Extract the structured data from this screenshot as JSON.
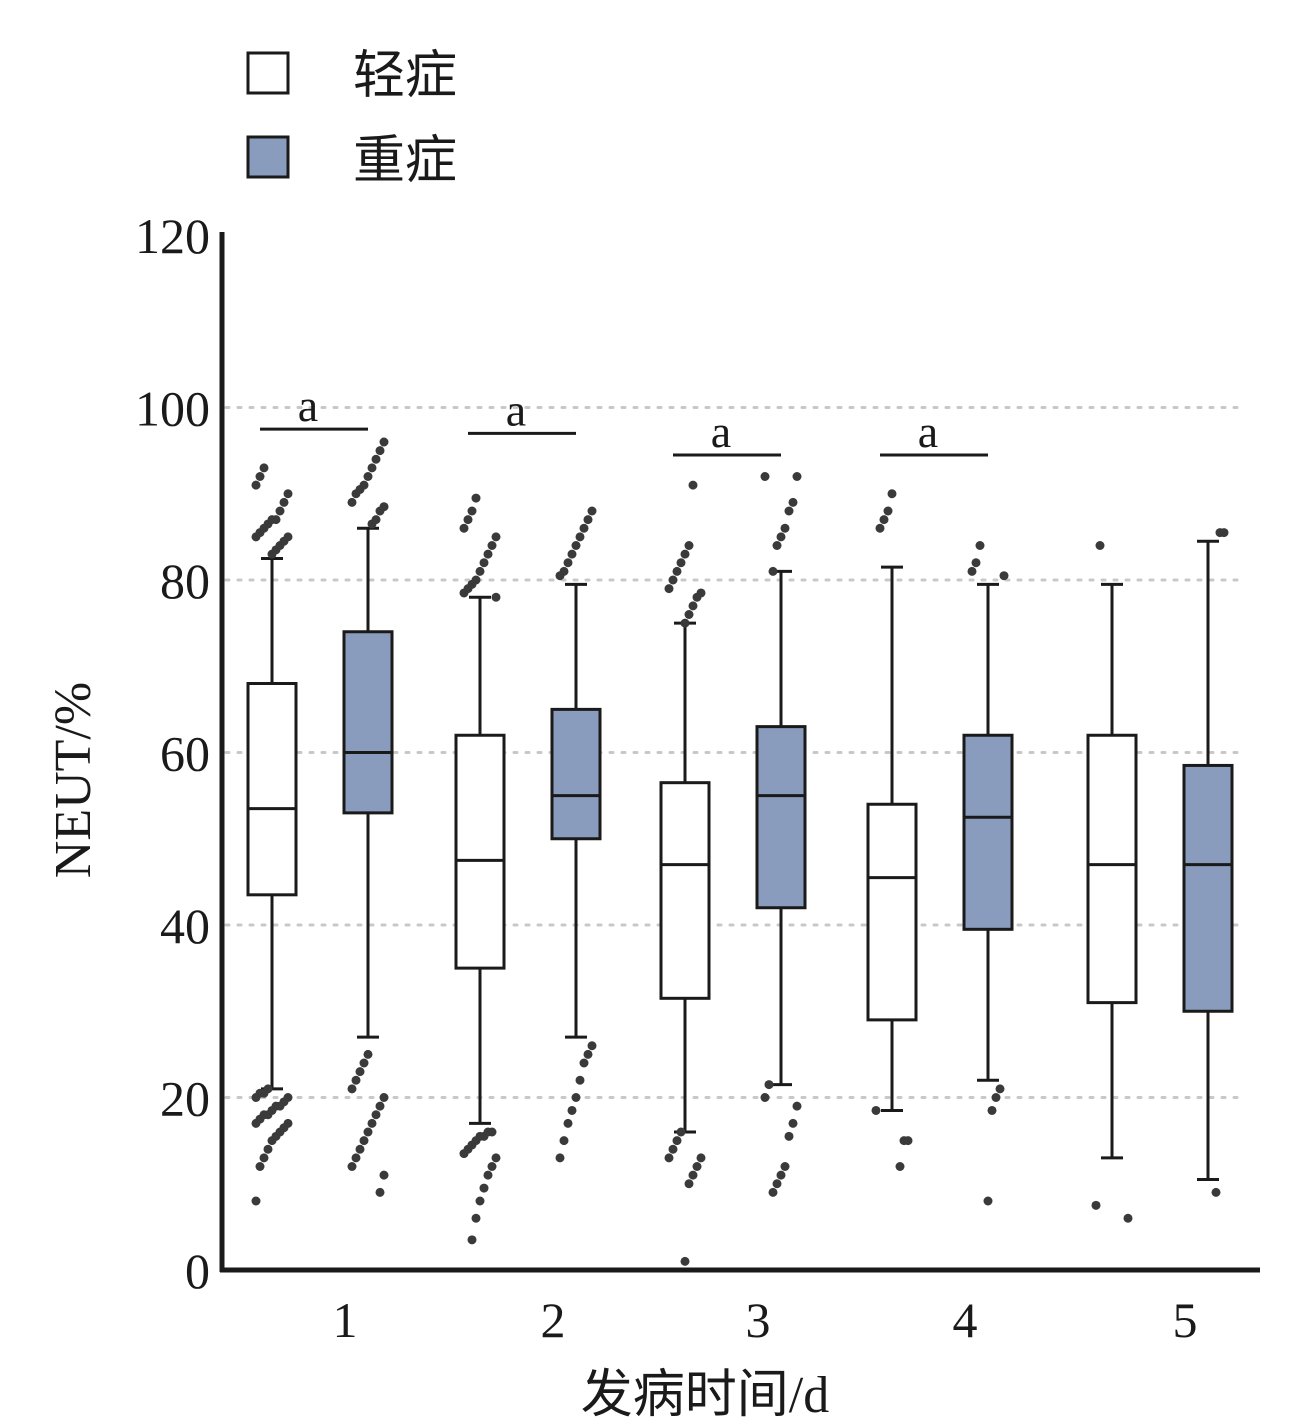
{
  "chart_data": {
    "type": "box",
    "ylabel": "NEUT/%",
    "xlabel": "发病时间/d",
    "ylim": [
      0,
      120
    ],
    "yticks": [
      "0",
      "20",
      "40",
      "60",
      "80",
      "100",
      "120"
    ],
    "categories": [
      "1",
      "2",
      "3",
      "4",
      "5"
    ],
    "grid": "dotted horizontal at 20, 40, 60, 80, 100",
    "legend_position": "top-left",
    "series": [
      {
        "name": "轻症",
        "color": "#ffffff",
        "boxes": [
          {
            "whisker_low": 21,
            "q1": 43.5,
            "median": 53.5,
            "q3": 68,
            "whisker_high": 82.5,
            "outliers": [
              8,
              12,
              13,
              14,
              15,
              15.5,
              16,
              16.5,
              17,
              17,
              17.5,
              18,
              18,
              18.5,
              19,
              19,
              19.5,
              20,
              20,
              20.5,
              20.5,
              21,
              83,
              83.5,
              84,
              84.5,
              85,
              85,
              85.5,
              86,
              86.5,
              87,
              87,
              88,
              89,
              90,
              91,
              92,
              93
            ]
          },
          {
            "whisker_low": 17,
            "q1": 35,
            "median": 47.5,
            "q3": 62,
            "whisker_high": 78,
            "outliers": [
              3.5,
              6,
              8,
              9.5,
              11,
              12,
              13,
              13.5,
              14,
              14.5,
              15,
              15.5,
              15.5,
              16,
              16,
              78,
              78.5,
              79,
              79.5,
              80,
              81,
              82,
              83,
              84,
              85,
              86,
              87,
              88,
              89.5
            ]
          },
          {
            "whisker_low": 16,
            "q1": 31.5,
            "median": 47,
            "q3": 56.5,
            "whisker_high": 75,
            "outliers": [
              1,
              10,
              11,
              12,
              13,
              13,
              14,
              15,
              16,
              75,
              76,
              77,
              78,
              78.5,
              79,
              80,
              81,
              82,
              83,
              84,
              91
            ]
          },
          {
            "whisker_low": 18.5,
            "q1": 29,
            "median": 45.5,
            "q3": 54,
            "whisker_high": 81.5,
            "outliers": [
              12,
              15,
              15,
              18.5,
              86,
              87,
              88,
              90
            ]
          },
          {
            "whisker_low": 13,
            "q1": 31,
            "median": 47,
            "q3": 62,
            "whisker_high": 79.5,
            "outliers": [
              6,
              7.5,
              84
            ]
          }
        ]
      },
      {
        "name": "重症",
        "color": "#8a9cbd",
        "boxes": [
          {
            "whisker_low": 27,
            "q1": 53,
            "median": 60,
            "q3": 74,
            "whisker_high": 86,
            "outliers": [
              9,
              11,
              12,
              13,
              14,
              15,
              16,
              17,
              18,
              19,
              20,
              21,
              22,
              23,
              24,
              25,
              86.5,
              87,
              88,
              88.5,
              89,
              90,
              90.5,
              91,
              92,
              93,
              94,
              95,
              96
            ]
          },
          {
            "whisker_low": 27,
            "q1": 50,
            "median": 55,
            "q3": 65,
            "whisker_high": 79.5,
            "outliers": [
              13,
              15,
              17,
              18.5,
              20,
              22,
              24,
              25,
              26,
              80.5,
              81,
              82,
              83,
              84,
              85,
              86,
              87,
              88
            ]
          },
          {
            "whisker_low": 21.5,
            "q1": 42,
            "median": 55,
            "q3": 63,
            "whisker_high": 81,
            "outliers": [
              9,
              10,
              11,
              12,
              15.5,
              17,
              19,
              20,
              21.5,
              81,
              84,
              85,
              86,
              88,
              89,
              92,
              92
            ]
          },
          {
            "whisker_low": 22,
            "q1": 39.5,
            "median": 52.5,
            "q3": 62,
            "whisker_high": 79.5,
            "outliers": [
              8,
              18.5,
              20,
              21,
              80.5,
              81,
              82,
              84
            ]
          },
          {
            "whisker_low": 10.5,
            "q1": 30,
            "median": 47,
            "q3": 58.5,
            "whisker_high": 84.5,
            "outliers": [
              9,
              85.5,
              85.5
            ]
          }
        ]
      }
    ],
    "annotations": [
      {
        "text": "a",
        "category": "1",
        "y": 97.5
      },
      {
        "text": "a",
        "category": "2",
        "y": 97
      },
      {
        "text": "a",
        "category": "3",
        "y": 94.5
      },
      {
        "text": "a",
        "category": "4",
        "y": 94.5
      }
    ]
  }
}
